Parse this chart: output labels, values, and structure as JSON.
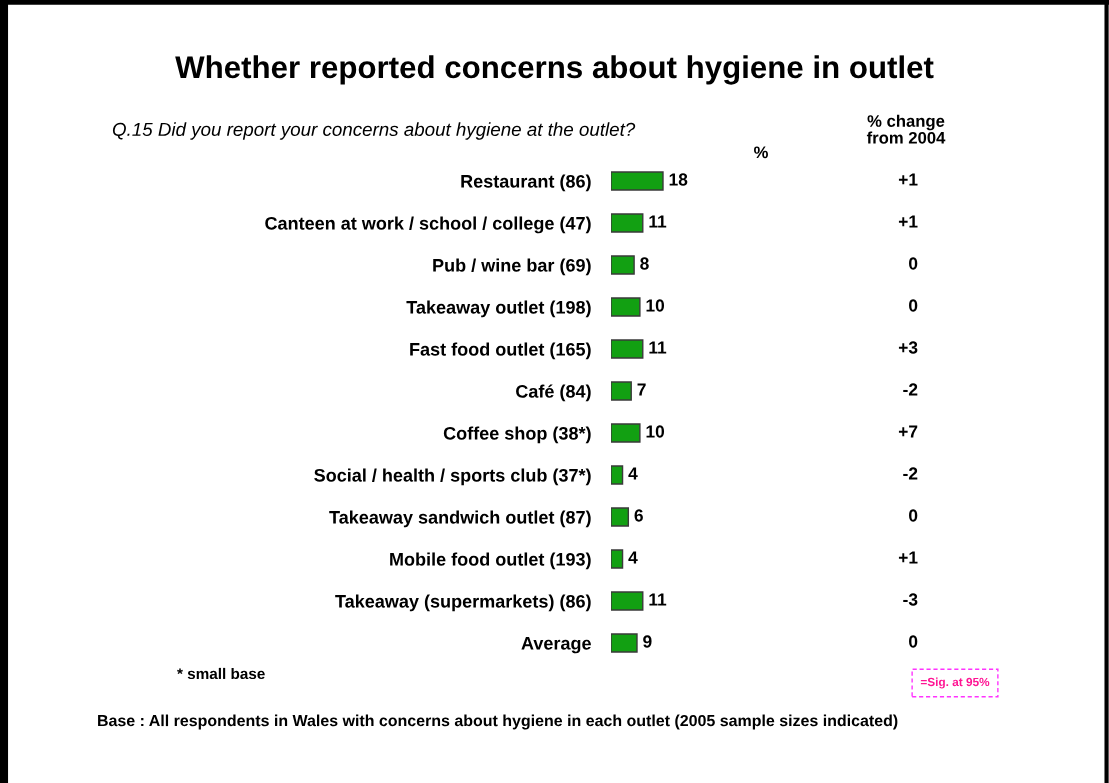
{
  "chart_data": [
    {
      "type": "bar",
      "orientation": "horizontal",
      "title": "Whether reported concerns about hygiene in outlet",
      "subtitle": "Q.15 Did you report your concerns about hygiene at the outlet?",
      "xlabel": "%",
      "categories": [
        "Restaurant (86)",
        "Canteen at work / school / college (47)",
        "Pub / wine bar (69)",
        "Takeaway outlet (198)",
        "Fast food outlet (165)",
        "Café (84)",
        "Coffee shop (38*)",
        "Social / health / sports club (37*)",
        "Takeaway sandwich outlet (87)",
        "Mobile food outlet (193)",
        "Takeaway (supermarkets) (86)",
        "Average"
      ],
      "values": [
        18,
        11,
        8,
        10,
        11,
        7,
        10,
        4,
        6,
        4,
        11,
        9
      ],
      "color": "#12a012",
      "data_labels": true,
      "tick_labels": "y",
      "annotations": [
        "* small base",
        "=Sig. at 95%",
        "Base : All respondents in Wales with concerns about hygiene in each outlet (2005 sample sizes indicated)"
      ]
    },
    {
      "type": "other",
      "title": "% change\nfrom 2004",
      "values": [
        1,
        1,
        0,
        0,
        3,
        -2,
        7,
        -2,
        0,
        1,
        -3,
        0
      ],
      "value_labels": [
        "+1",
        "+1",
        "0",
        "0",
        "+3",
        "-2",
        "+7",
        "-2",
        "0",
        "+1",
        "-3",
        "0"
      ]
    }
  ]
}
